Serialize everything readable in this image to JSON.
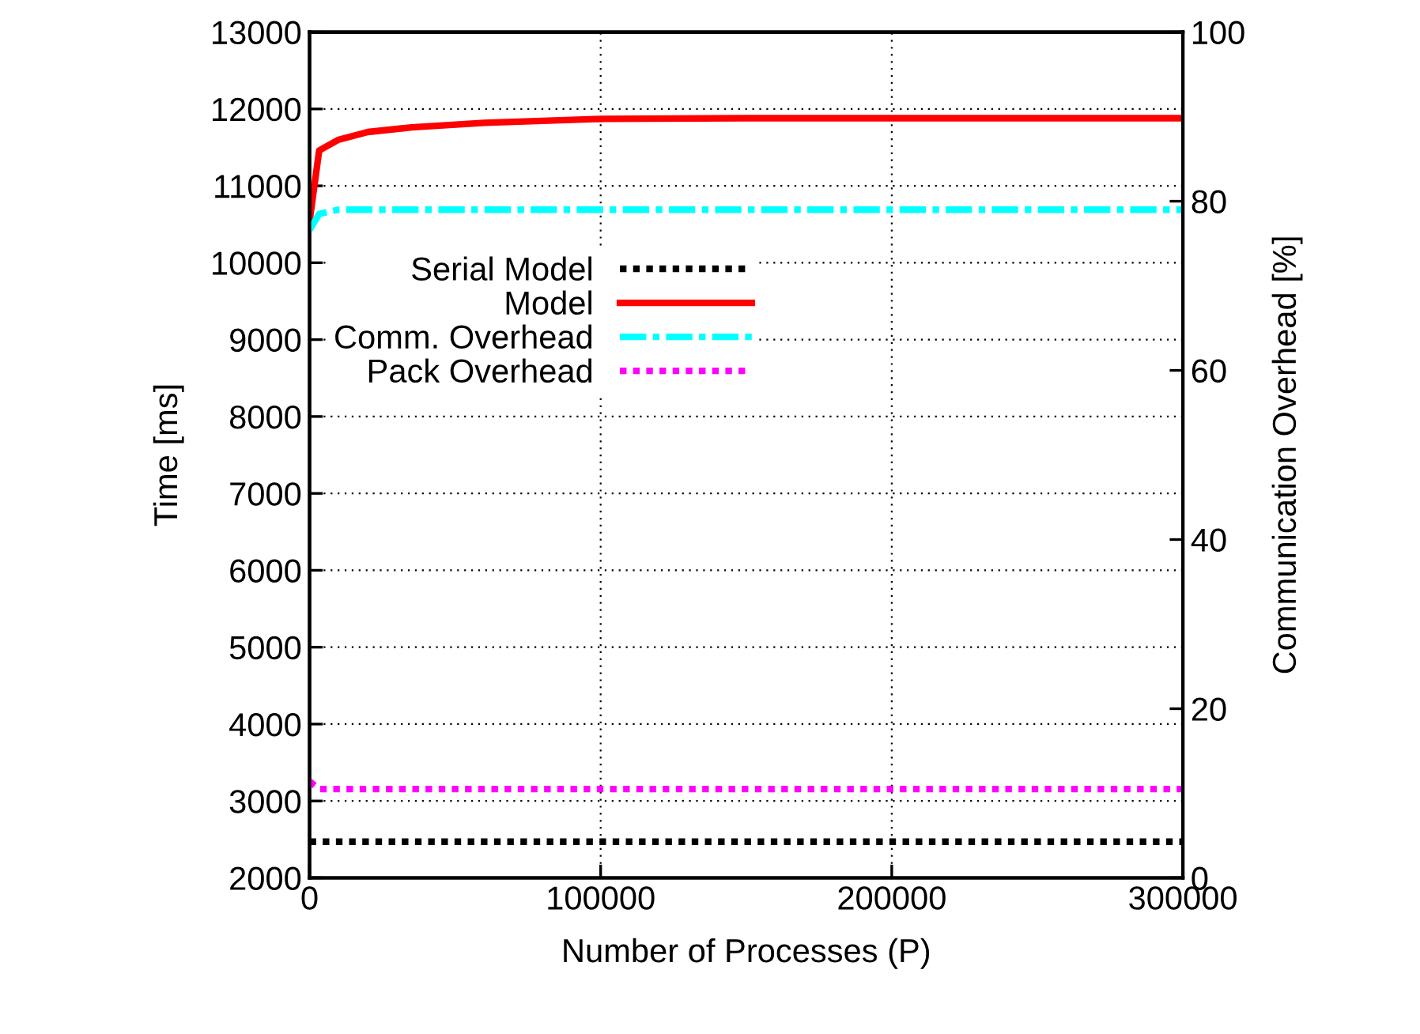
{
  "chart_data": {
    "type": "line",
    "xlabel": "Number of Processes (P)",
    "ylabel": "Time [ms]",
    "y2label": "Communication Overhead [%]",
    "series": [
      {
        "name": "Serial Model",
        "color": "#000000",
        "line_style": "dotted",
        "x": [
          0,
          300000
        ],
        "values": [
          2470,
          2470
        ]
      },
      {
        "name": "Model",
        "color": "#ff0000",
        "line_style": "solid",
        "x": [
          0,
          3300,
          10000,
          20000,
          35000,
          60000,
          100000,
          150000,
          300000
        ],
        "values": [
          10540,
          11460,
          11600,
          11700,
          11760,
          11820,
          11870,
          11880,
          11880
        ]
      },
      {
        "name": "Comm. Overhead",
        "color": "#00ffff",
        "line_style": "dashdot",
        "axis": "y2",
        "x": [
          0,
          3300,
          10000,
          300000
        ],
        "values": [
          76.6,
          78.5,
          79,
          79
        ]
      },
      {
        "name": "Pack Overhead",
        "color": "#ff00ff",
        "line_style": "dotted",
        "axis": "y2",
        "x": [
          0,
          3300,
          300000
        ],
        "values": [
          11.4,
          10.5,
          10.5
        ]
      }
    ],
    "xlim": [
      0,
      300000
    ],
    "xticks": [
      0,
      100000,
      200000,
      300000
    ],
    "ylim": [
      2000,
      13000
    ],
    "yticks": [
      2000,
      3000,
      4000,
      5000,
      6000,
      7000,
      8000,
      9000,
      10000,
      11000,
      12000,
      13000
    ],
    "y2lim": [
      0,
      100
    ],
    "y2ticks": [
      0,
      20,
      40,
      60,
      80,
      100
    ],
    "grid": true,
    "legend": "top left"
  }
}
